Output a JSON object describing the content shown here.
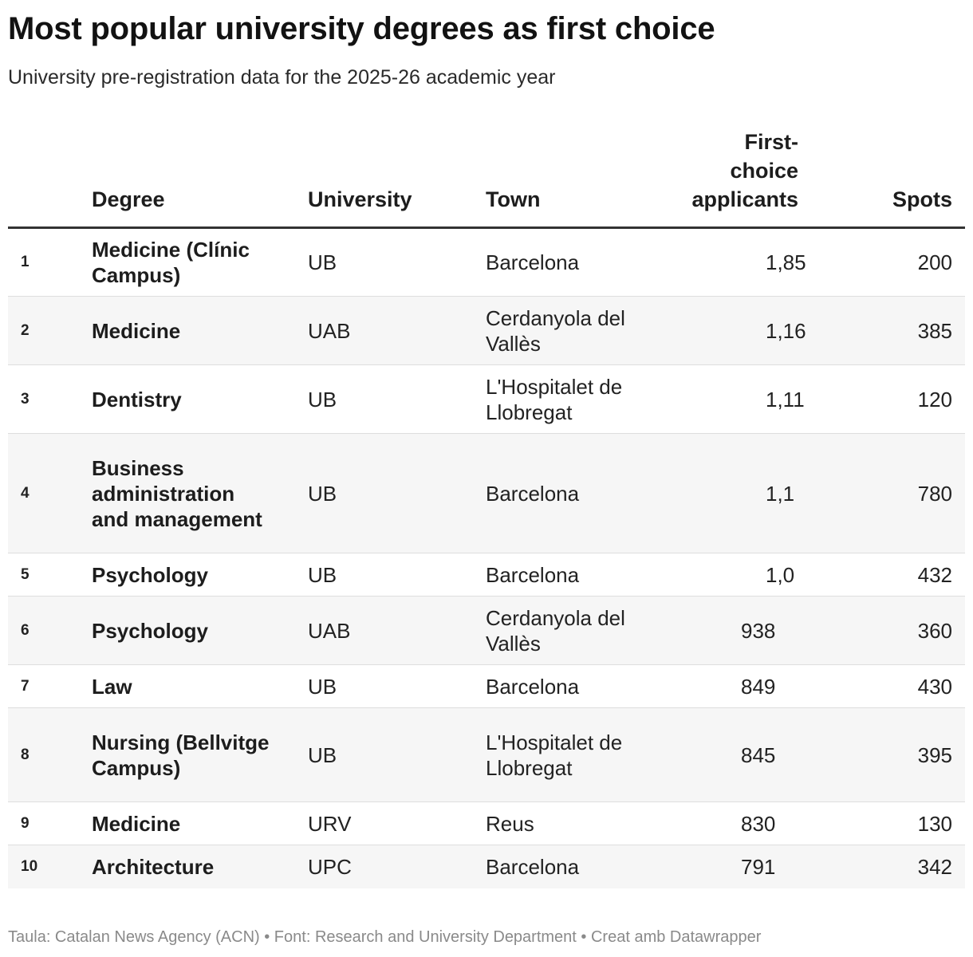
{
  "title": "Most popular university degrees as first choice",
  "subtitle": "University pre-registration data for the 2025-26 academic year",
  "columns": {
    "rank": "",
    "degree": "Degree",
    "university": "University",
    "town": "Town",
    "first_choice_applicants": "First-choice applicants",
    "spots": "Spots"
  },
  "rows": [
    {
      "rank": "1",
      "degree": "Medicine (Clínic Campus)",
      "university": "UB",
      "town": "Barcelona",
      "applicants": "1,85",
      "spots": "200"
    },
    {
      "rank": "2",
      "degree": "Medicine",
      "university": "UAB",
      "town": "Cerdanyola del Vallès",
      "applicants": "1,16",
      "spots": "385"
    },
    {
      "rank": "3",
      "degree": "Dentistry",
      "university": "UB",
      "town": "L'Hospitalet de Llobregat",
      "applicants": "1,11",
      "spots": "120"
    },
    {
      "rank": "4",
      "degree": "Business administration and management",
      "university": "UB",
      "town": "Barcelona",
      "applicants": "1,1",
      "spots": "780"
    },
    {
      "rank": "5",
      "degree": "Psychology",
      "university": "UB",
      "town": "Barcelona",
      "applicants": "1,0",
      "spots": "432"
    },
    {
      "rank": "6",
      "degree": "Psychology",
      "university": "UAB",
      "town": "Cerdanyola del Vallès",
      "applicants": "938",
      "spots": "360"
    },
    {
      "rank": "7",
      "degree": "Law",
      "university": "UB",
      "town": "Barcelona",
      "applicants": "849",
      "spots": "430"
    },
    {
      "rank": "8",
      "degree": "Nursing (Bellvitge Campus)",
      "university": "UB",
      "town": "L'Hospitalet de Llobregat",
      "applicants": "845",
      "spots": "395"
    },
    {
      "rank": "9",
      "degree": "Medicine",
      "university": "URV",
      "town": "Reus",
      "applicants": "830",
      "spots": "130"
    },
    {
      "rank": "10",
      "degree": "Architecture",
      "university": "UPC",
      "town": "Barcelona",
      "applicants": "791",
      "spots": "342"
    }
  ],
  "footer": "Taula: Catalan News Agency (ACN) • Font: Research and University Department • Creat amb Datawrapper",
  "colors": {
    "text": "#1d1d1d",
    "row_stripe": "#f6f6f6",
    "header_rule": "#333333",
    "row_rule": "#dedede",
    "footer_text": "#8a8a8a"
  },
  "chart_data": {
    "type": "table",
    "title": "Most popular university degrees as first choice",
    "subtitle": "University pre-registration data for the 2025-26 academic year",
    "columns": [
      "",
      "Degree",
      "University",
      "Town",
      "First-choice applicants",
      "Spots"
    ],
    "rows": [
      [
        "1",
        "Medicine (Clínic Campus)",
        "UB",
        "Barcelona",
        "1,85",
        "200"
      ],
      [
        "2",
        "Medicine",
        "UAB",
        "Cerdanyola del Vallès",
        "1,16",
        "385"
      ],
      [
        "3",
        "Dentistry",
        "UB",
        "L'Hospitalet de Llobregat",
        "1,11",
        "120"
      ],
      [
        "4",
        "Business administration and management",
        "UB",
        "Barcelona",
        "1,1",
        "780"
      ],
      [
        "5",
        "Psychology",
        "UB",
        "Barcelona",
        "1,0",
        "432"
      ],
      [
        "6",
        "Psychology",
        "UAB",
        "Cerdanyola del Vallès",
        "938",
        "360"
      ],
      [
        "7",
        "Law",
        "UB",
        "Barcelona",
        "849",
        "430"
      ],
      [
        "8",
        "Nursing (Bellvitge Campus)",
        "UB",
        "L'Hospitalet de Llobregat",
        "845",
        "395"
      ],
      [
        "9",
        "Medicine",
        "URV",
        "Reus",
        "830",
        "130"
      ],
      [
        "10",
        "Architecture",
        "UPC",
        "Barcelona",
        "791",
        "342"
      ]
    ]
  }
}
